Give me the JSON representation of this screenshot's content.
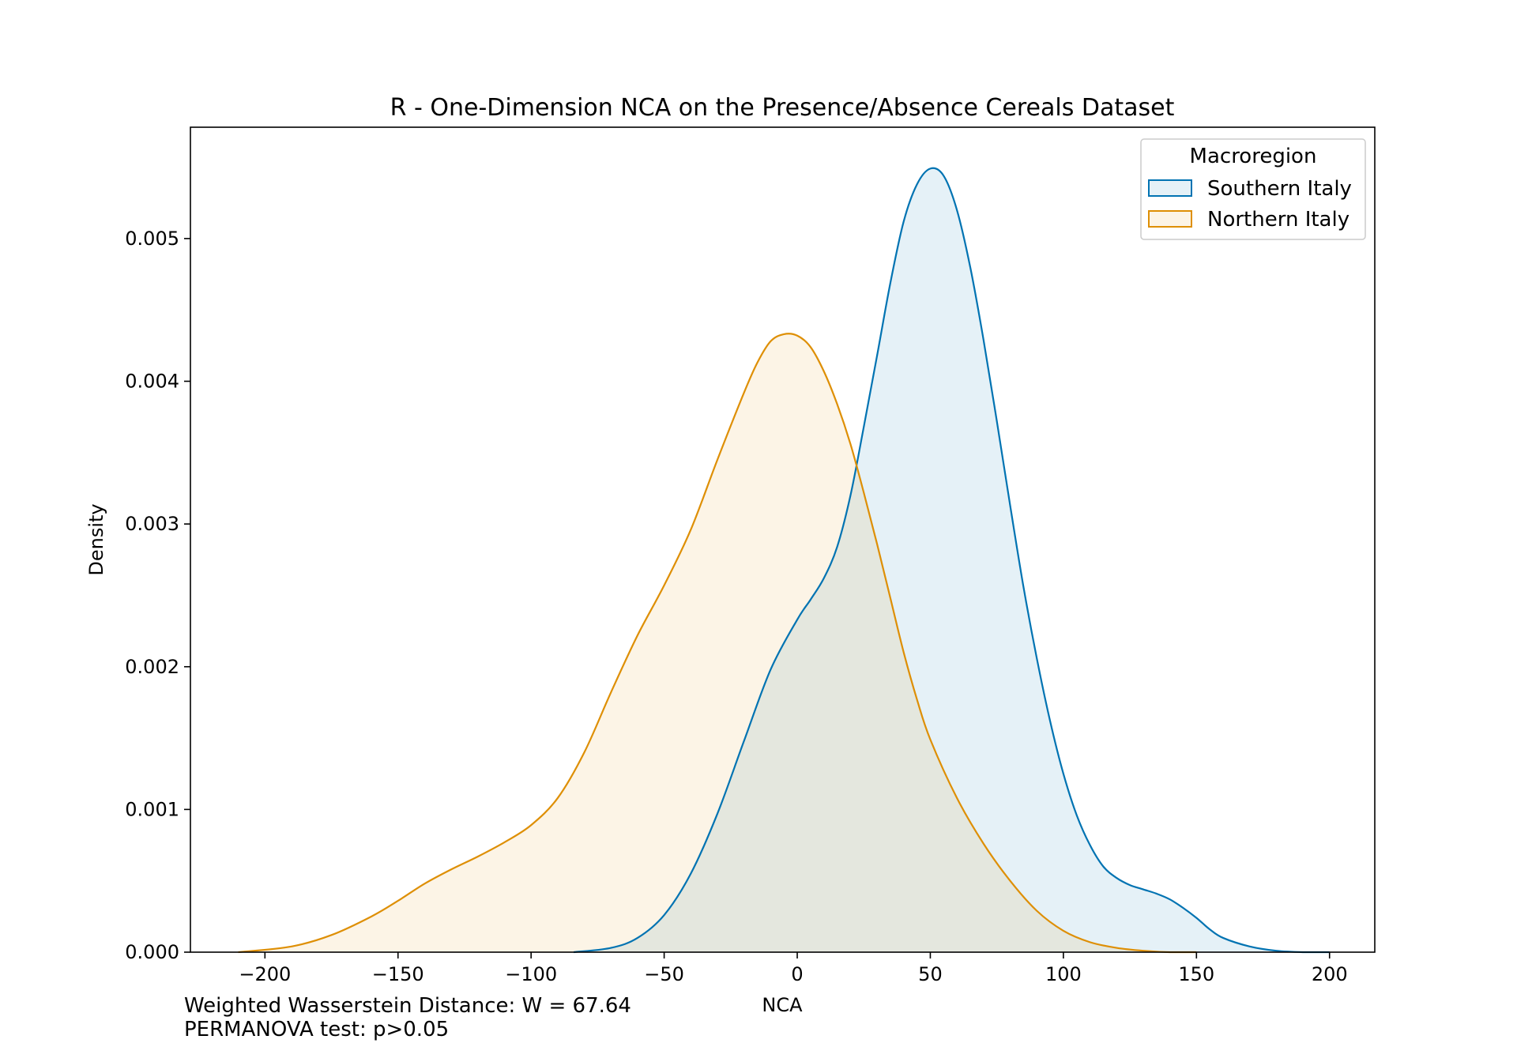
{
  "chart_data": {
    "type": "area",
    "title": "R - One-Dimension NCA on the Presence/Absence Cereals Dataset",
    "xlabel": "NCA",
    "ylabel": "Density",
    "xlim": [
      -228,
      217
    ],
    "ylim": [
      0,
      0.00578
    ],
    "x_ticks": [
      -200,
      -150,
      -100,
      -50,
      0,
      50,
      100,
      150,
      200
    ],
    "x_tick_labels": [
      "−200",
      "−150",
      "−100",
      "−50",
      "0",
      "50",
      "100",
      "150",
      "200"
    ],
    "y_ticks": [
      0,
      0.001,
      0.002,
      0.003,
      0.004,
      0.005
    ],
    "y_tick_labels": [
      "0.000",
      "0.001",
      "0.002",
      "0.003",
      "0.004",
      "0.005"
    ],
    "grid": false,
    "legend": {
      "title": "Macroregion",
      "placement": "top-right"
    },
    "series": [
      {
        "name": "Southern Italy",
        "color": "#0173b2",
        "x": [
          -84,
          -70,
          -60,
          -50,
          -40,
          -30,
          -20,
          -10,
          0,
          5,
          10,
          15,
          20,
          25,
          30,
          35,
          40,
          45,
          50,
          55,
          60,
          65,
          70,
          75,
          80,
          85,
          90,
          95,
          100,
          105,
          110,
          115,
          120,
          125,
          130,
          135,
          140,
          145,
          150,
          155,
          160,
          170,
          180,
          190,
          200
        ],
        "y": [
          0.0,
          3e-05,
          0.0001,
          0.00026,
          0.00055,
          0.00097,
          0.00148,
          0.00198,
          0.00233,
          0.00247,
          0.00262,
          0.00284,
          0.0032,
          0.00368,
          0.00418,
          0.00469,
          0.00512,
          0.00538,
          0.00549,
          0.00544,
          0.0052,
          0.0048,
          0.00429,
          0.00372,
          0.00313,
          0.00256,
          0.00206,
          0.00162,
          0.00125,
          0.00096,
          0.00075,
          0.0006,
          0.00052,
          0.00047,
          0.00044,
          0.00041,
          0.00037,
          0.00031,
          0.00024,
          0.00016,
          0.0001,
          4e-05,
          1e-05,
          0.0,
          0.0
        ]
      },
      {
        "name": "Northern Italy",
        "color": "#de8f05",
        "x": [
          -210,
          -190,
          -175,
          -160,
          -150,
          -140,
          -130,
          -120,
          -110,
          -100,
          -90,
          -80,
          -70,
          -60,
          -50,
          -40,
          -30,
          -20,
          -15,
          -10,
          -5,
          0,
          5,
          10,
          15,
          20,
          25,
          30,
          35,
          40,
          45,
          50,
          60,
          70,
          80,
          90,
          100,
          110,
          120,
          130,
          140,
          150
        ],
        "y": [
          0.0,
          4e-05,
          0.00012,
          0.00025,
          0.00036,
          0.00048,
          0.00058,
          0.00067,
          0.00077,
          0.00089,
          0.00108,
          0.0014,
          0.00182,
          0.00222,
          0.00257,
          0.00296,
          0.00345,
          0.00392,
          0.00413,
          0.00428,
          0.00433,
          0.00432,
          0.00424,
          0.00407,
          0.00384,
          0.00356,
          0.00322,
          0.00286,
          0.00248,
          0.0021,
          0.00177,
          0.00149,
          0.00108,
          0.00076,
          0.0005,
          0.00029,
          0.00015,
          7e-05,
          3e-05,
          1e-05,
          0.0,
          0.0
        ]
      }
    ]
  },
  "annotations": {
    "line1": "Weighted Wasserstein Distance: W = 67.64",
    "line2": "PERMANOVA test: p>0.05"
  }
}
